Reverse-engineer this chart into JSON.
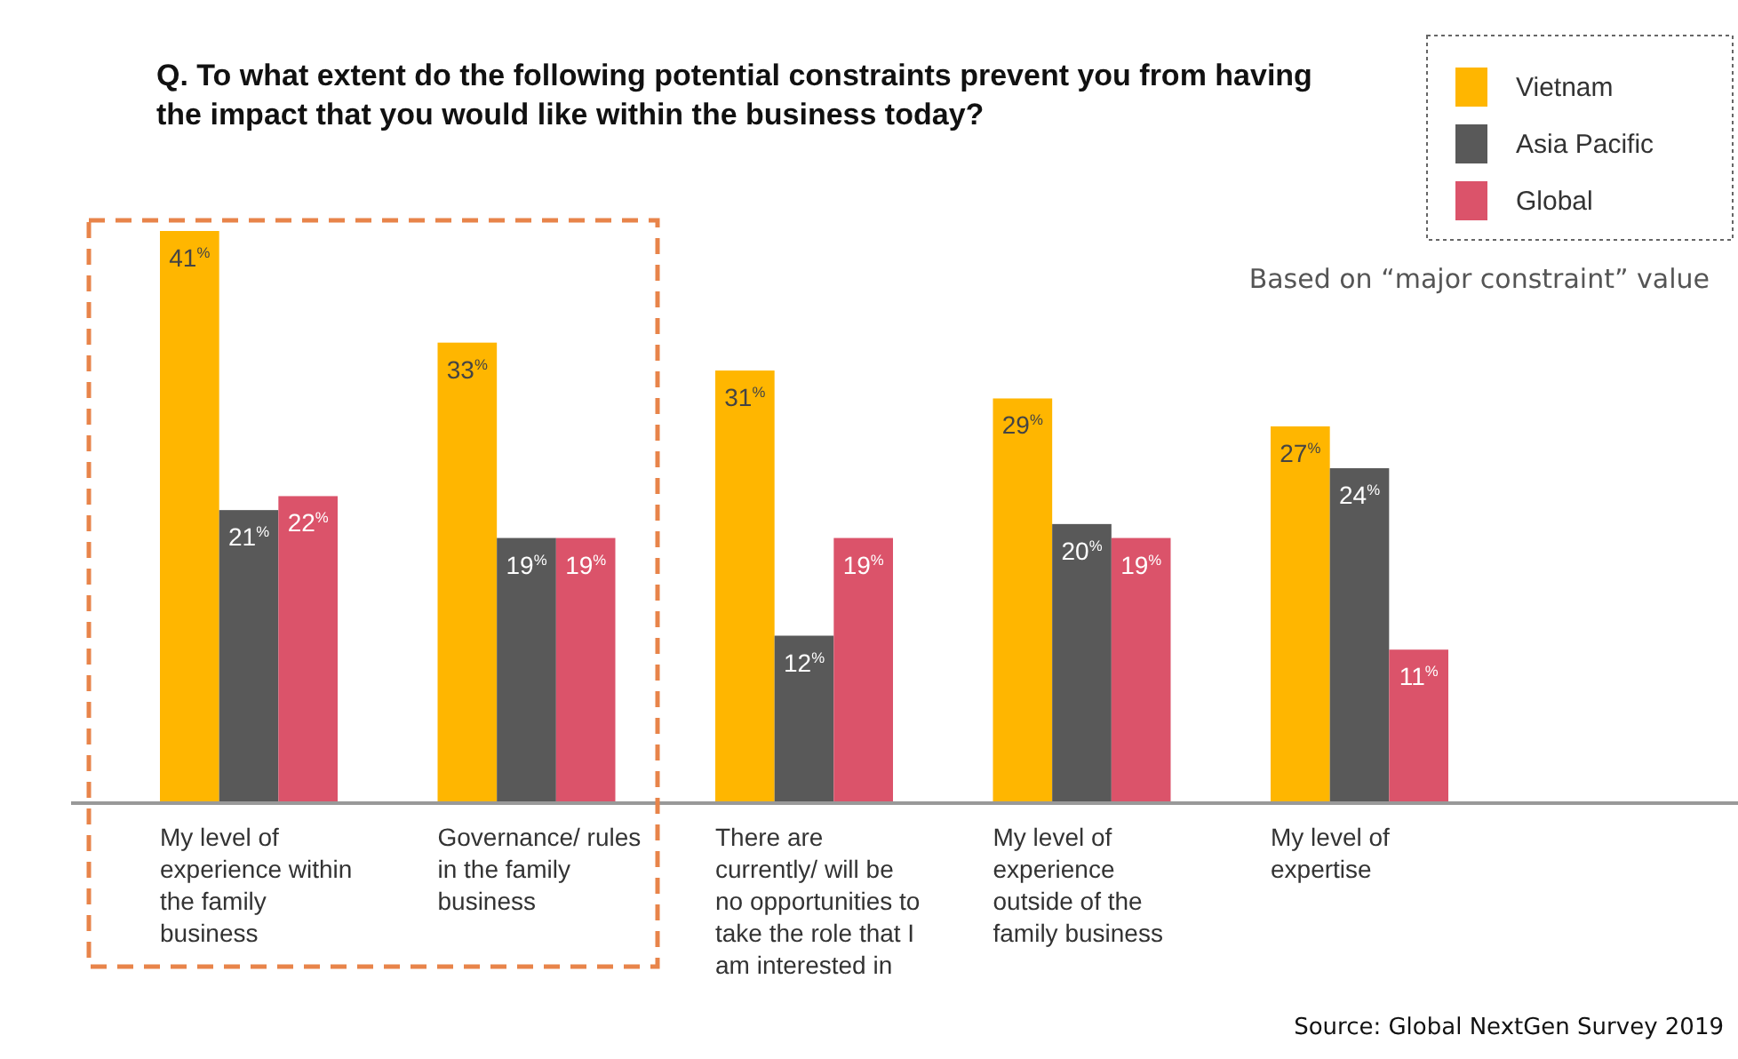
{
  "chart_data": {
    "type": "bar",
    "title": "Q. To what extent do the following potential constraints prevent you from having the impact that you would like within the business today?",
    "categories": [
      "My level of experience within the family business",
      "Governance/ rules in the family business",
      "There are currently/ will be no opportunities to take the role that I am interested in",
      "My level of experience outside of the family business",
      "My level of expertise"
    ],
    "series": [
      {
        "name": "Vietnam",
        "color": "#ffb600",
        "values": [
          41,
          33,
          31,
          29,
          27
        ],
        "value_labels": [
          "41$^{%}$",
          "33$^{%}$",
          "31$^{%}$",
          "29$^{%}$",
          "27$^{%}$"
        ]
      },
      {
        "name": "Asia Pacific",
        "color": "#595959",
        "values": [
          21,
          19,
          12,
          20,
          24
        ],
        "value_labels": [
          "21$^{%}$",
          "19$^{%}$",
          "12$^{%}$",
          "20$^{%}$",
          "24$^{%}$"
        ]
      },
      {
        "name": "Global",
        "color": "#db536a",
        "values": [
          22,
          19,
          19,
          19,
          11
        ],
        "value_labels": [
          "22$^{%}$",
          "19$^{%}$",
          "19$^{%}$",
          "19$^{%}$",
          "11$^{%}$"
        ]
      }
    ],
    "legend": "top right",
    "grid": false,
    "annotations": [
      "Based on “major constraint” value",
      "Source: Global NextGen Survey 2019"
    ]
  }
}
